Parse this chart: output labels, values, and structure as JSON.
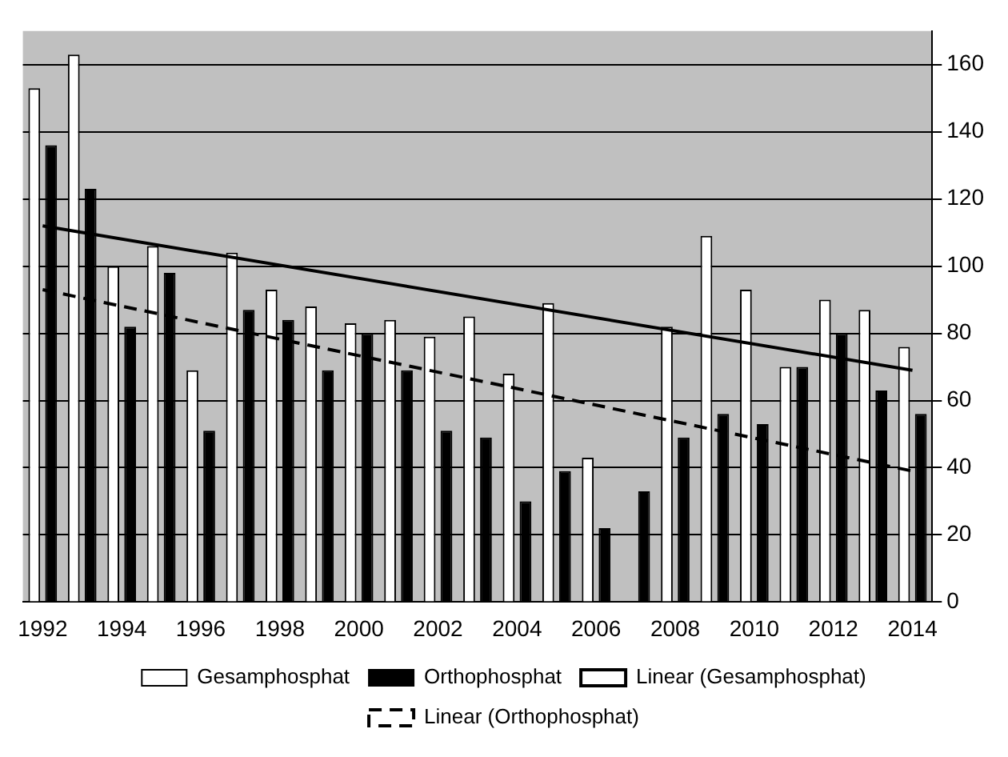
{
  "chart_data": {
    "type": "bar",
    "categories": [
      "1992",
      null,
      "1994",
      null,
      "1996",
      null,
      "1998",
      null,
      "2000",
      null,
      "2002",
      null,
      "2004",
      null,
      "2006",
      null,
      "2008",
      null,
      "2010",
      null,
      "2012",
      null,
      "2014"
    ],
    "series": [
      {
        "name": "Gesamphosphat",
        "color": "#ffffff",
        "values": [
          153,
          163,
          100,
          106,
          69,
          104,
          93,
          88,
          83,
          84,
          79,
          85,
          68,
          89,
          43,
          null,
          82,
          109,
          93,
          70,
          90,
          87,
          76
        ]
      },
      {
        "name": "Orthophosphat",
        "color": "#000000",
        "values": [
          136,
          123,
          82,
          98,
          51,
          87,
          84,
          69,
          80,
          69,
          51,
          49,
          30,
          39,
          22,
          33,
          49,
          56,
          53,
          70,
          80,
          63,
          56
        ]
      },
      {
        "name": "Linear (Gesamphosphat)",
        "type": "line",
        "color": "#000000",
        "line_style": "solid",
        "values": [
          112,
          null,
          null,
          null,
          null,
          null,
          null,
          null,
          null,
          null,
          null,
          null,
          null,
          null,
          null,
          null,
          null,
          null,
          null,
          null,
          null,
          null,
          69
        ]
      },
      {
        "name": "Linear (Orthophosphat)",
        "type": "line",
        "color": "#000000",
        "line_style": "dashed",
        "values": [
          93,
          null,
          null,
          null,
          null,
          null,
          null,
          null,
          null,
          null,
          null,
          null,
          null,
          null,
          null,
          null,
          null,
          null,
          null,
          null,
          null,
          null,
          39
        ]
      }
    ],
    "ylim": [
      0,
      170
    ],
    "yticks": [
      0,
      20,
      40,
      60,
      80,
      100,
      120,
      140,
      160
    ],
    "grid": "y",
    "legend": "bottom",
    "marker": "none"
  }
}
